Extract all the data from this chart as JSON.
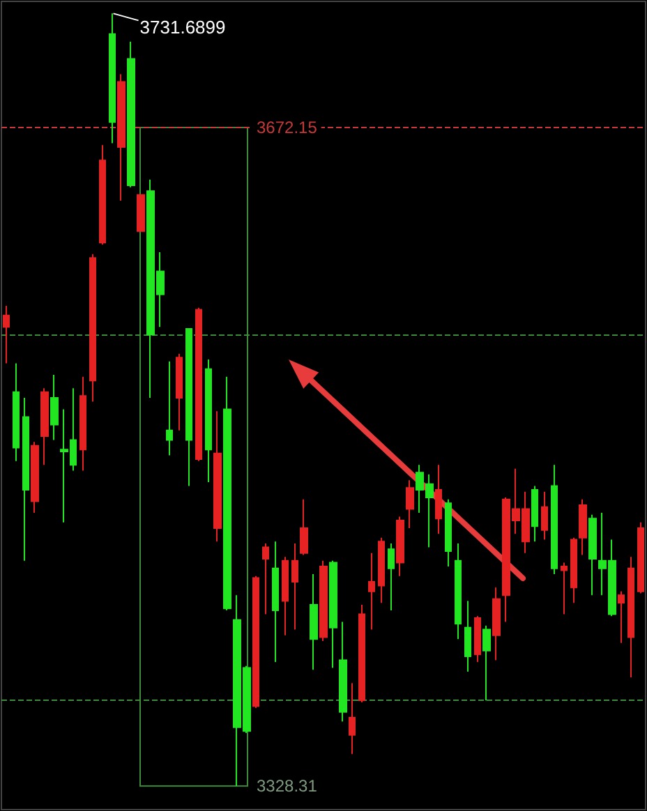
{
  "chart_data": {
    "type": "candlestick",
    "categories": [
      null,
      null,
      null,
      null,
      null,
      null,
      null,
      null,
      null,
      null,
      null,
      null,
      null,
      null,
      null,
      null,
      null,
      null,
      null,
      null,
      null,
      null,
      null,
      null,
      null,
      null,
      null,
      null,
      null,
      null,
      null,
      null,
      null,
      null,
      null,
      null,
      null,
      null,
      null,
      null,
      null,
      null,
      null,
      null,
      null,
      null,
      null,
      null,
      null,
      null,
      null,
      null,
      null,
      null,
      null,
      null,
      null,
      null,
      null,
      null,
      null,
      null,
      null,
      null,
      null,
      null,
      null
    ],
    "ohlc": [
      [
        3568,
        3579,
        3549,
        3574
      ],
      [
        3534,
        3549,
        3498,
        3505
      ],
      [
        3521,
        3531,
        3446,
        3483
      ],
      [
        3477,
        3508,
        3471,
        3506
      ],
      [
        3511,
        3536,
        3496,
        3534
      ],
      [
        3531,
        3543,
        3509,
        3517
      ],
      [
        3504,
        3525,
        3466,
        3503
      ],
      [
        3509,
        3536,
        3493,
        3496
      ],
      [
        3504,
        3542,
        3493,
        3532
      ],
      [
        3540,
        3606,
        3529,
        3604
      ],
      [
        3612,
        3663,
        3611,
        3655
      ],
      [
        3721,
        3731.6899,
        3664,
        3675
      ],
      [
        3662,
        3700,
        3634,
        3696
      ],
      [
        3708,
        3717,
        3641,
        3642
      ],
      [
        3618,
        3637,
        3618,
        3637
      ],
      [
        3639,
        3645,
        3531,
        3564
      ],
      [
        3597,
        3607,
        3568,
        3585
      ],
      [
        3514,
        3550,
        3501,
        3509
      ],
      [
        3531,
        3554,
        3514,
        3552
      ],
      [
        3567,
        3567,
        3485,
        3509
      ],
      [
        3499,
        3578,
        3498,
        3577
      ],
      [
        3546,
        3551,
        3487,
        3504
      ],
      [
        3463,
        3524,
        3456,
        3502
      ],
      [
        3525,
        3542,
        3420,
        3421
      ],
      [
        3415,
        3428,
        3328.31,
        3359
      ],
      [
        3390,
        3391,
        3356,
        3357
      ],
      [
        3370,
        3438,
        3369,
        3437
      ],
      [
        3447,
        3455,
        3418,
        3453
      ],
      [
        3442,
        3456,
        3393,
        3420
      ],
      [
        3425,
        3448,
        3407,
        3446
      ],
      [
        3435,
        3455,
        3410,
        3446
      ],
      [
        3450,
        3478,
        3449,
        3463
      ],
      [
        3423,
        3439,
        3389,
        3405
      ],
      [
        3406,
        3446,
        3404,
        3443
      ],
      [
        3445,
        3446,
        3390,
        3411
      ],
      [
        3394,
        3414,
        3362,
        3367
      ],
      [
        3355,
        3382,
        3345,
        3364
      ],
      [
        3373,
        3423,
        3372,
        3418
      ],
      [
        3430,
        3450,
        3410,
        3435
      ],
      [
        3433,
        3458,
        3424,
        3456
      ],
      [
        3452,
        3455,
        3420,
        3442
      ],
      [
        3445,
        3469,
        3438,
        3467
      ],
      [
        3473,
        3488,
        3463,
        3484
      ],
      [
        3492,
        3496,
        3471,
        3483
      ],
      [
        3486,
        3491,
        3453,
        3479
      ],
      [
        3468,
        3496,
        3460,
        3483
      ],
      [
        3476,
        3478,
        3443,
        3451
      ],
      [
        3446,
        3455,
        3405,
        3413
      ],
      [
        3411,
        3425,
        3388,
        3396
      ],
      [
        3397,
        3417,
        3393,
        3416
      ],
      [
        3410,
        3412,
        3373,
        3399
      ],
      [
        3407,
        3432,
        3394,
        3426
      ],
      [
        3428,
        3479,
        3414,
        3478
      ],
      [
        3467,
        3494,
        3460,
        3473
      ],
      [
        3456,
        3482,
        3450,
        3473
      ],
      [
        3483,
        3485,
        3456,
        3464
      ],
      [
        3462,
        3482,
        3457,
        3474
      ],
      [
        3485,
        3496,
        3439,
        3442
      ],
      [
        3441,
        3445,
        3418,
        3443
      ],
      [
        3432,
        3458,
        3424,
        3457
      ],
      [
        3458,
        3478,
        3449,
        3475
      ],
      [
        3468,
        3470,
        3428,
        3447
      ],
      [
        3446,
        3471,
        3428,
        3442
      ],
      [
        3446,
        3457,
        3417,
        3418
      ],
      [
        3424,
        3430,
        3403,
        3428
      ],
      [
        3406,
        3448,
        3385,
        3442
      ],
      [
        3430,
        3466,
        3429,
        3463
      ]
    ],
    "colors": [
      "#e62222",
      "#22e622",
      "#22e622",
      "#e62222",
      "#e62222",
      "#22e622",
      "#22e622",
      "#22e622",
      "#e62222",
      "#e62222",
      "#e62222",
      "#22e622",
      "#e62222",
      "#22e622",
      "#e62222",
      "#22e622",
      "#22e622",
      "#22e622",
      "#e62222",
      "#22e622",
      "#e62222",
      "#22e622",
      "#e62222",
      "#22e622",
      "#22e622",
      "#22e622",
      "#e62222",
      "#e62222",
      "#22e622",
      "#e62222",
      "#e62222",
      "#e62222",
      "#22e622",
      "#e62222",
      "#22e622",
      "#22e622",
      "#e62222",
      "#e62222",
      "#e62222",
      "#e62222",
      "#22e622",
      "#e62222",
      "#e62222",
      "#22e622",
      "#22e622",
      "#e62222",
      "#22e622",
      "#22e622",
      "#22e622",
      "#e62222",
      "#22e622",
      "#e62222",
      "#e62222",
      "#e62222",
      "#e62222",
      "#22e622",
      "#e62222",
      "#22e622",
      "#e62222",
      "#e62222",
      "#e62222",
      "#22e622",
      "#22e622",
      "#22e622",
      "#e62222",
      "#e62222",
      "#e62222"
    ],
    "ylim": [
      3316,
      3738
    ],
    "yticks": [
      3328.31,
      3672.15
    ],
    "tick_labels": "y",
    "ref_lines": [
      {
        "axis": "y",
        "value": 3672.15,
        "color": "#c83838",
        "line_style": "dashed"
      },
      {
        "axis": "y",
        "value": 3564,
        "color": "#3c8c3c",
        "line_style": "dashed"
      },
      {
        "axis": "y",
        "value": 3373,
        "color": "#3c8c3c",
        "line_style": "dashed"
      }
    ],
    "annotations": [
      "3731.6899"
    ]
  }
}
